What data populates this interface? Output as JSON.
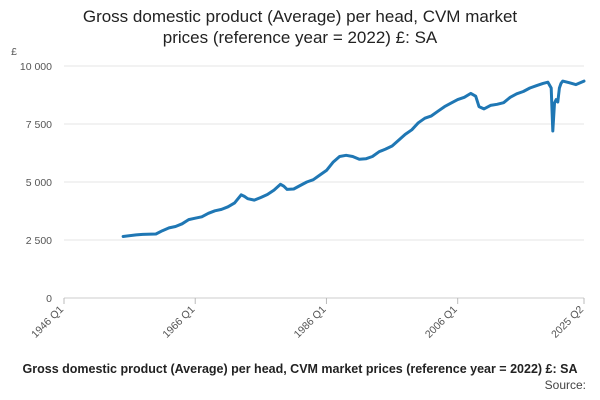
{
  "title_line1": "Gross domestic product (Average) per head, CVM market",
  "title_line2": "prices (reference year = 2022) £: SA",
  "caption": "Gross domestic product (Average) per head, CVM market prices (reference year = 2022) £: SA",
  "source": "Source:",
  "chart_data": {
    "type": "line",
    "title": "Gross domestic product (Average) per head, CVM market prices (reference year = 2022) £: SA",
    "ylabel": "£",
    "xlabel": "",
    "ylim": [
      0,
      10000
    ],
    "xlim": [
      1946.0,
      2025.25
    ],
    "y_ticks": [
      0,
      2500,
      5000,
      7500,
      10000
    ],
    "y_tick_labels": [
      "0",
      "2 500",
      "5 000",
      "7 500",
      "10 000"
    ],
    "x_ticks": [
      1946.0,
      1966.0,
      1986.0,
      2006.0,
      2025.25
    ],
    "x_tick_labels": [
      "1946 Q1",
      "1966 Q1",
      "1986 Q1",
      "2006 Q1",
      "2025 Q2"
    ],
    "grid": "horizontal",
    "legend": "none",
    "color": "#1f77b4",
    "series": [
      {
        "x": [
          1955.0,
          1957.0,
          1958.0,
          1960.0,
          1961.0,
          1962.0,
          1963.0,
          1964.0,
          1965.0,
          1966.0,
          1967.0,
          1968.0,
          1969.0,
          1970.0,
          1971.0,
          1972.0,
          1973.0,
          1973.5,
          1974.0,
          1975.0,
          1976.0,
          1977.0,
          1978.0,
          1979.0,
          1979.5,
          1980.0,
          1981.0,
          1982.0,
          1983.0,
          1984.0,
          1985.0,
          1986.0,
          1987.0,
          1988.0,
          1989.0,
          1990.0,
          1991.0,
          1992.0,
          1993.0,
          1994.0,
          1995.0,
          1996.0,
          1997.0,
          1998.0,
          1999.0,
          2000.0,
          2001.0,
          2002.0,
          2003.0,
          2004.0,
          2005.0,
          2006.0,
          2007.0,
          2008.0,
          2008.75,
          2009.25,
          2010.0,
          2011.0,
          2012.0,
          2013.0,
          2014.0,
          2015.0,
          2016.0,
          2017.0,
          2018.0,
          2019.0,
          2019.75,
          2020.25,
          2020.5,
          2020.75,
          2021.0,
          2021.25,
          2021.5,
          2021.75,
          2022.0,
          2023.0,
          2024.0,
          2025.25
        ],
        "y": [
          2650,
          2720,
          2740,
          2760,
          2900,
          3020,
          3080,
          3200,
          3380,
          3440,
          3500,
          3650,
          3760,
          3820,
          3930,
          4100,
          4450,
          4380,
          4280,
          4220,
          4330,
          4460,
          4650,
          4900,
          4820,
          4680,
          4700,
          4850,
          5000,
          5100,
          5300,
          5500,
          5850,
          6100,
          6150,
          6100,
          5980,
          6000,
          6100,
          6300,
          6420,
          6550,
          6800,
          7050,
          7250,
          7550,
          7750,
          7850,
          8050,
          8250,
          8400,
          8550,
          8650,
          8820,
          8700,
          8250,
          8150,
          8300,
          8350,
          8420,
          8650,
          8800,
          8900,
          9050,
          9150,
          9250,
          9300,
          9050,
          7200,
          8400,
          8550,
          8450,
          9050,
          9250,
          9350,
          9280,
          9200,
          9350
        ]
      }
    ]
  }
}
